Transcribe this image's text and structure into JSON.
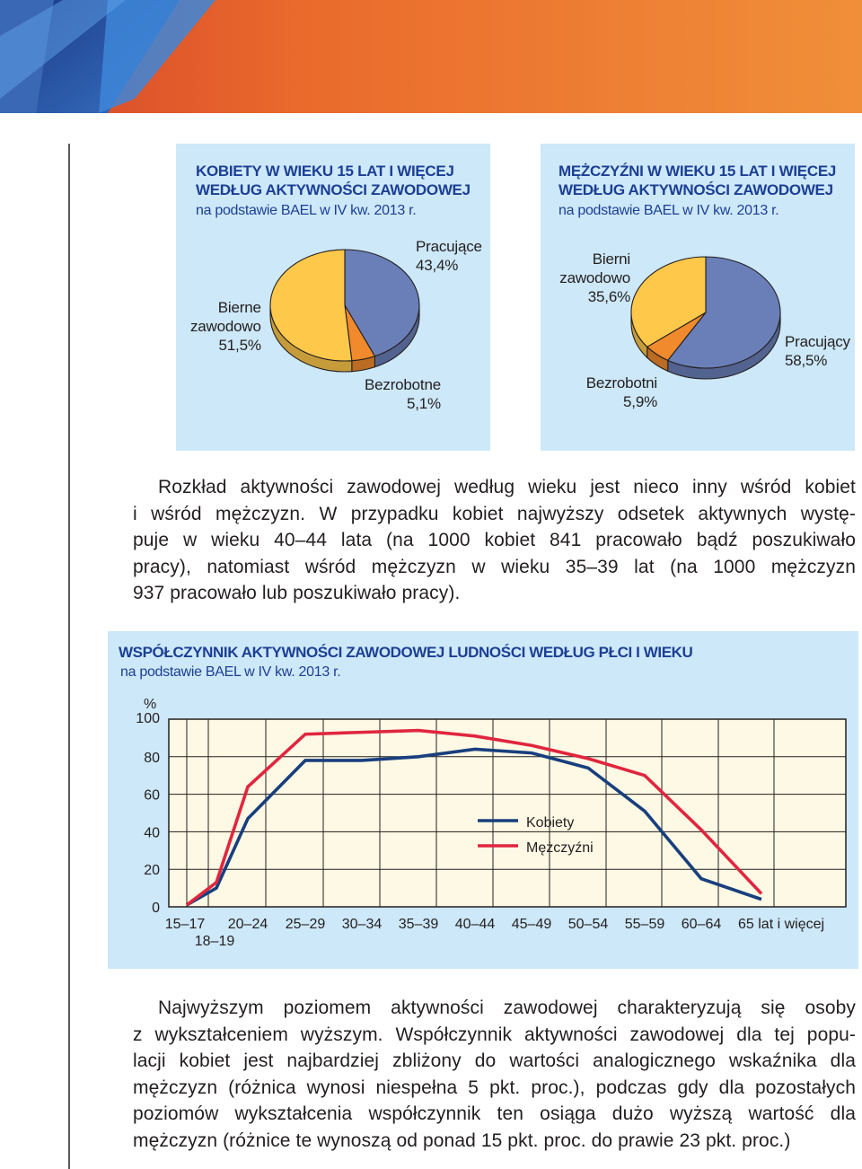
{
  "colors": {
    "panel_bg": "#cde8f8",
    "heading": "#1c3f94",
    "pie_working": "#6a7fb8",
    "pie_unemployed": "#f08a2c",
    "pie_inactive": "#fec84b",
    "line_women": "#183f7e",
    "line_men": "#e0263f",
    "plot_bg": "#fdf9e4"
  },
  "pies": {
    "women": {
      "title_line1": "KOBIETY W WIEKU 15 LAT I WIĘCEJ",
      "title_line2": "WEDŁUG AKTYWNOŚCI ZAWODOWEJ",
      "subtitle": "na podstawie BAEL w IV kw. 2013 r.",
      "working_label": "Pracujące",
      "working_value": "43,4%",
      "unemployed_label": "Bezrobotne",
      "unemployed_value": "5,1%",
      "inactive_label1": "Bierne",
      "inactive_label2": "zawodowo",
      "inactive_value": "51,5%"
    },
    "men": {
      "title_line1": "MĘŻCZYŹNI W WIEKU 15 LAT I WIĘCEJ",
      "title_line2": "WEDŁUG AKTYWNOŚCI ZAWODOWEJ",
      "subtitle": "na podstawie BAEL w IV kw. 2013 r.",
      "working_label": "Pracujący",
      "working_value": "58,5%",
      "unemployed_label": "Bezrobotni",
      "unemployed_value": "5,9%",
      "inactive_label1": "Bierni",
      "inactive_label2": "zawodowo",
      "inactive_value": "35,6%"
    }
  },
  "paragraph1": [
    "Rozkład aktywności zawodowej według wieku jest nieco inny wśród kobiet",
    "i wśród mężczyzn. W przypadku kobiet najwyższy odsetek aktywnych wystę-",
    "puje w wieku 40–44 lata (na 1000 kobiet 841 pracowało bądź poszukiwało",
    "pracy), natomiast wśród mężczyzn w wieku 35–39 lat (na 1000 mężczyzn",
    "937 pracowało lub poszukiwało pracy)."
  ],
  "paragraph2": [
    "Najwyższym poziomem aktywności zawodowej charakteryzują się osoby",
    "z wykształceniem wyższym. Współczynnik aktywności zawodowej dla tej popu-",
    "lacji kobiet jest najbardziej zbliżony do wartości analogicznego wskaźnika dla",
    "mężczyzn (różnica wynosi niespełna 5 pkt. proc.), podczas gdy dla pozostałych",
    "poziomów wykształcenia współczynnik ten osiąga dużo wyższą wartość dla",
    "mężczyzn (różnice te wynoszą od ponad 15 pkt. proc. do prawie 23 pkt. proc.)"
  ],
  "chart_data": [
    {
      "type": "pie",
      "title": "KOBIETY W WIEKU 15 LAT I WIĘCEJ WEDŁUG AKTYWNOŚCI ZAWODOWEJ",
      "subtitle": "na podstawie BAEL w IV kw. 2013 r.",
      "slices": [
        {
          "label": "Pracujące",
          "value": 43.4
        },
        {
          "label": "Bezrobotne",
          "value": 5.1
        },
        {
          "label": "Bierne zawodowo",
          "value": 51.5
        }
      ]
    },
    {
      "type": "pie",
      "title": "MĘŻCZYŹNI W WIEKU 15 LAT I WIĘCEJ WEDŁUG AKTYWNOŚCI ZAWODOWEJ",
      "subtitle": "na podstawie BAEL w IV kw. 2013 r.",
      "slices": [
        {
          "label": "Pracujący",
          "value": 58.5
        },
        {
          "label": "Bezrobotni",
          "value": 5.9
        },
        {
          "label": "Bierni zawodowo",
          "value": 35.6
        }
      ]
    },
    {
      "type": "line",
      "title": "WSPÓŁCZYNNIK AKTYWNOŚCI ZAWODOWEJ LUDNOŚCI WEDŁUG PŁCI I WIEKU",
      "subtitle": "na podstawie BAEL w IV kw. 2013 r.",
      "ylabel": "%",
      "ylim": [
        0,
        100
      ],
      "yticks": [
        "0",
        "20",
        "40",
        "60",
        "80",
        "100"
      ],
      "categories": [
        "15–17",
        "18–19",
        "20–24",
        "25–29",
        "30–34",
        "35–39",
        "40–44",
        "45–49",
        "50–54",
        "55–59",
        "60–64",
        "65 lat i więcej"
      ],
      "grid": true,
      "legend": "center-right",
      "series": [
        {
          "name": "Kobiety",
          "values": [
            1,
            10,
            47,
            78,
            78,
            80,
            84,
            82,
            74,
            51,
            15,
            4
          ]
        },
        {
          "name": "Mężczyźni",
          "values": [
            1,
            13,
            64,
            92,
            93,
            94,
            91,
            86,
            79,
            70,
            41,
            7
          ]
        }
      ]
    }
  ]
}
